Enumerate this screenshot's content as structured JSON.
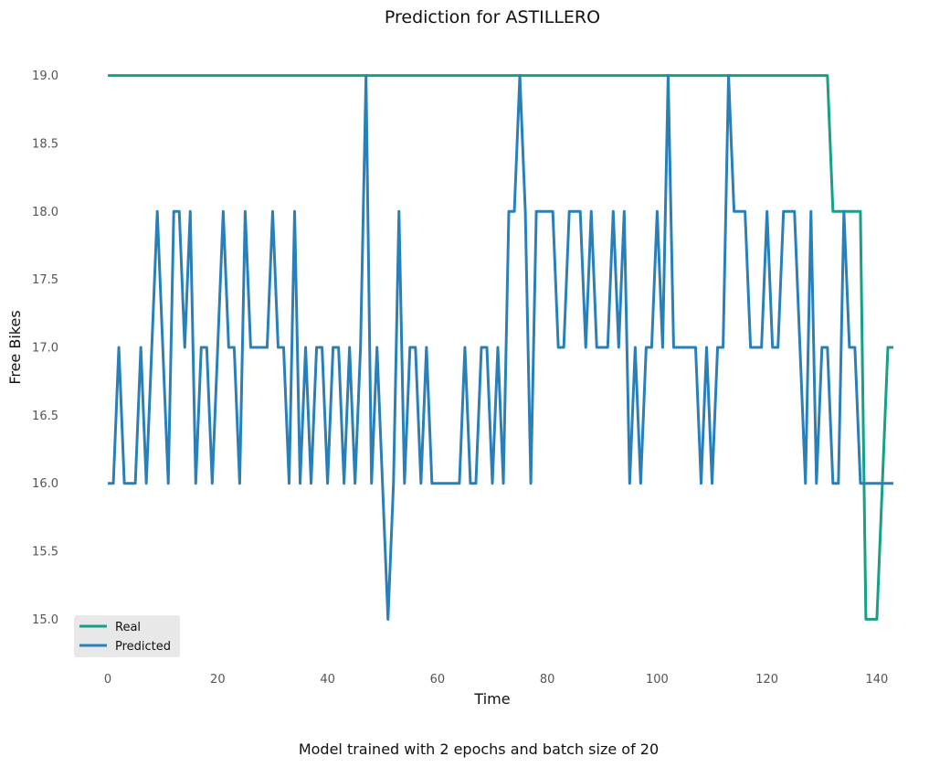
{
  "chart_data": {
    "type": "line",
    "title": "Prediction for ASTILLERO",
    "xlabel": "Time",
    "ylabel": "Free Bikes",
    "subtitle": "Model trained with 2 epochs and batch size of 20",
    "xlim": [
      -5,
      145
    ],
    "ylim": [
      14.7,
      19.3
    ],
    "grid": false,
    "legend_position": "lower-left",
    "xticks": [
      0,
      20,
      40,
      60,
      80,
      100,
      120,
      140
    ],
    "xtick_labels": [
      "0",
      "20",
      "40",
      "60",
      "80",
      "100",
      "120",
      "140"
    ],
    "yticks": [
      15.0,
      15.5,
      16.0,
      16.5,
      17.0,
      17.5,
      18.0,
      18.5,
      19.0
    ],
    "ytick_labels": [
      "15.0",
      "15.5",
      "16.0",
      "16.5",
      "17.0",
      "17.5",
      "18.0",
      "18.5",
      "19.0"
    ],
    "series": [
      {
        "name": "Real",
        "color": "#16a085",
        "values": [
          19,
          19,
          19,
          19,
          19,
          19,
          19,
          19,
          19,
          19,
          19,
          19,
          19,
          19,
          19,
          19,
          19,
          19,
          19,
          19,
          19,
          19,
          19,
          19,
          19,
          19,
          19,
          19,
          19,
          19,
          19,
          19,
          19,
          19,
          19,
          19,
          19,
          19,
          19,
          19,
          19,
          19,
          19,
          19,
          19,
          19,
          19,
          19,
          19,
          19,
          19,
          19,
          19,
          19,
          19,
          19,
          19,
          19,
          19,
          19,
          19,
          19,
          19,
          19,
          19,
          19,
          19,
          19,
          19,
          19,
          19,
          19,
          19,
          19,
          19,
          19,
          19,
          19,
          19,
          19,
          19,
          19,
          19,
          19,
          19,
          19,
          19,
          19,
          19,
          19,
          19,
          19,
          19,
          19,
          19,
          19,
          19,
          19,
          19,
          19,
          19,
          19,
          19,
          19,
          19,
          19,
          19,
          19,
          19,
          19,
          19,
          19,
          19,
          19,
          19,
          19,
          19,
          19,
          19,
          19,
          19,
          19,
          19,
          19,
          19,
          19,
          19,
          19,
          19,
          19,
          19,
          19,
          18,
          18,
          18,
          18,
          18,
          18,
          15,
          15,
          15,
          16,
          17,
          17
        ]
      },
      {
        "name": "Predicted",
        "color": "#2980b9",
        "values": [
          16,
          16,
          17,
          16,
          16,
          16,
          17,
          16,
          17,
          18,
          17,
          16,
          18,
          18,
          17,
          18,
          16,
          17,
          17,
          16,
          17,
          18,
          17,
          17,
          16,
          18,
          17,
          17,
          17,
          17,
          18,
          17,
          17,
          16,
          18,
          16,
          17,
          16,
          17,
          17,
          16,
          17,
          17,
          16,
          17,
          16,
          17,
          19,
          16,
          17,
          16,
          15,
          16,
          18,
          16,
          17,
          17,
          16,
          17,
          16,
          16,
          16,
          16,
          16,
          16,
          17,
          16,
          16,
          17,
          17,
          16,
          17,
          16,
          18,
          18,
          19,
          18,
          16,
          18,
          18,
          18,
          18,
          17,
          17,
          18,
          18,
          18,
          17,
          18,
          17,
          17,
          17,
          18,
          17,
          18,
          16,
          17,
          16,
          17,
          17,
          18,
          17,
          19,
          17,
          17,
          17,
          17,
          17,
          16,
          17,
          16,
          17,
          17,
          19,
          18,
          18,
          18,
          17,
          17,
          17,
          18,
          17,
          17,
          18,
          18,
          18,
          17,
          16,
          18,
          16,
          17,
          17,
          16,
          16,
          18,
          17,
          17,
          16,
          16,
          16,
          16,
          16,
          16,
          16
        ]
      }
    ]
  }
}
